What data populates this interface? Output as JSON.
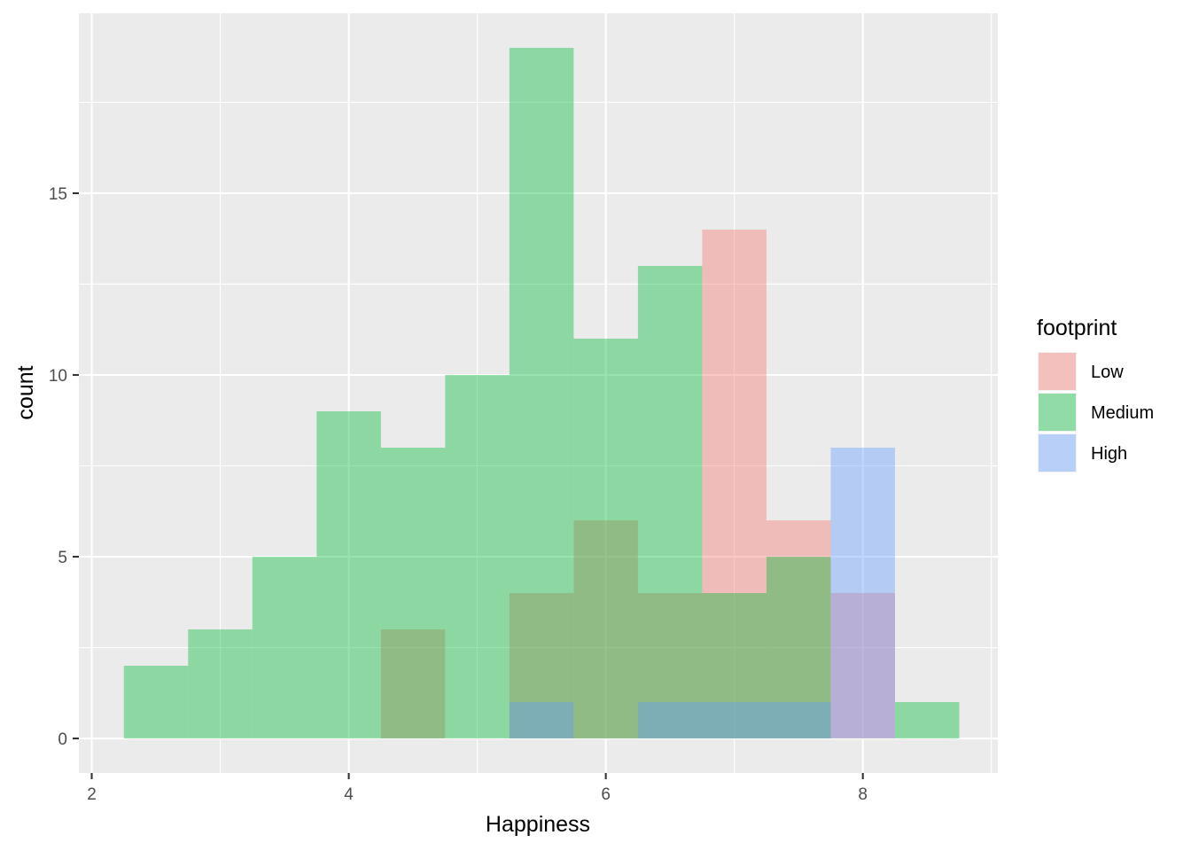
{
  "chart_data": {
    "type": "histogram",
    "xlabel": "Happiness",
    "ylabel": "count",
    "xlim": [
      1.9,
      9.05
    ],
    "ylim": [
      -0.95,
      19.95
    ],
    "x_ticks": [
      2,
      4,
      6,
      8
    ],
    "x_tick_labels": [
      "2",
      "4",
      "6",
      "8"
    ],
    "y_ticks": [
      0,
      5,
      10,
      15
    ],
    "y_tick_labels": [
      "0",
      "5",
      "10",
      "15"
    ],
    "x_minor_ticks": [
      3,
      5,
      7,
      9
    ],
    "y_minor_ticks": [
      2.5,
      7.5,
      12.5,
      17.5
    ],
    "bin_width": 0.5,
    "bin_starts": [
      2.25,
      2.75,
      3.25,
      3.75,
      4.25,
      4.75,
      5.25,
      5.75,
      6.25,
      6.75,
      7.25,
      7.75,
      8.25
    ],
    "grid": true,
    "background": "#ebebeb",
    "legend": {
      "title": "footprint",
      "position": "right"
    },
    "bar_opacity": 0.4,
    "series": [
      {
        "name": "Low",
        "color": "#f8766d",
        "values": [
          0,
          0,
          0,
          0,
          3,
          0,
          4,
          6,
          4,
          14,
          6,
          4,
          0
        ]
      },
      {
        "name": "Medium",
        "color": "#00ba38",
        "values": [
          2,
          3,
          5,
          9,
          8,
          10,
          19,
          11,
          13,
          4,
          5,
          0,
          1
        ]
      },
      {
        "name": "High",
        "color": "#619cff",
        "values": [
          0,
          0,
          0,
          0,
          0,
          0,
          1,
          0,
          1,
          1,
          1,
          8,
          0
        ]
      }
    ]
  }
}
